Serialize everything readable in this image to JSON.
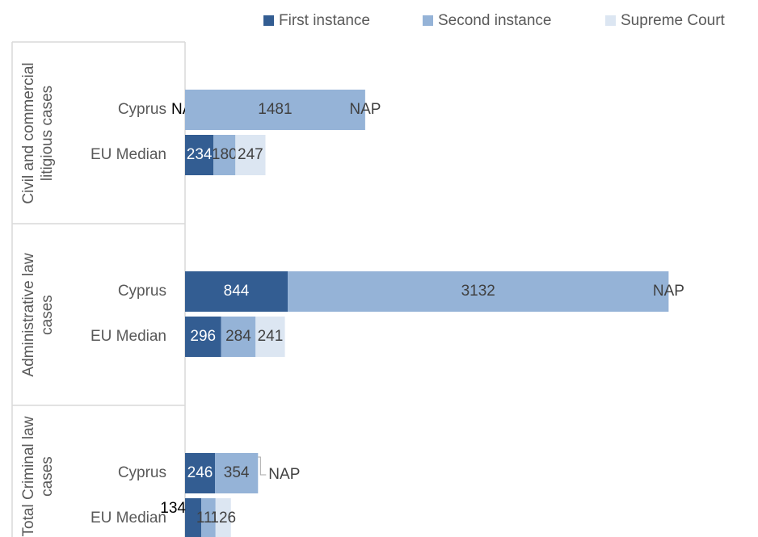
{
  "chart_data": {
    "type": "bar",
    "orientation": "horizontal",
    "stacked": true,
    "legend": "top-right",
    "groups": [
      {
        "name": "Civil and commercial litigious cases",
        "categories": [
          "Cyprus",
          "EU Median"
        ]
      },
      {
        "name": "Administrative law cases",
        "categories": [
          "Cyprus",
          "EU Median"
        ]
      },
      {
        "name": "Total Criminal law cases",
        "categories": [
          "Cyprus",
          "EU Median"
        ]
      }
    ],
    "series": [
      {
        "name": "First instance",
        "color": "#335d92",
        "values": [
          null,
          234,
          844,
          296,
          246,
          134
        ],
        "value_labels": [
          "NA",
          null,
          null,
          null,
          null,
          null
        ]
      },
      {
        "name": "Second instance",
        "color": "#95b3d7",
        "values": [
          1481,
          180,
          3132,
          284,
          354,
          117
        ]
      },
      {
        "name": "Supreme Court",
        "color": "#dce6f2",
        "values": [
          null,
          247,
          null,
          241,
          null,
          126
        ],
        "value_labels": [
          "NAP",
          null,
          "NAP",
          null,
          "NAP",
          null
        ]
      }
    ]
  }
}
